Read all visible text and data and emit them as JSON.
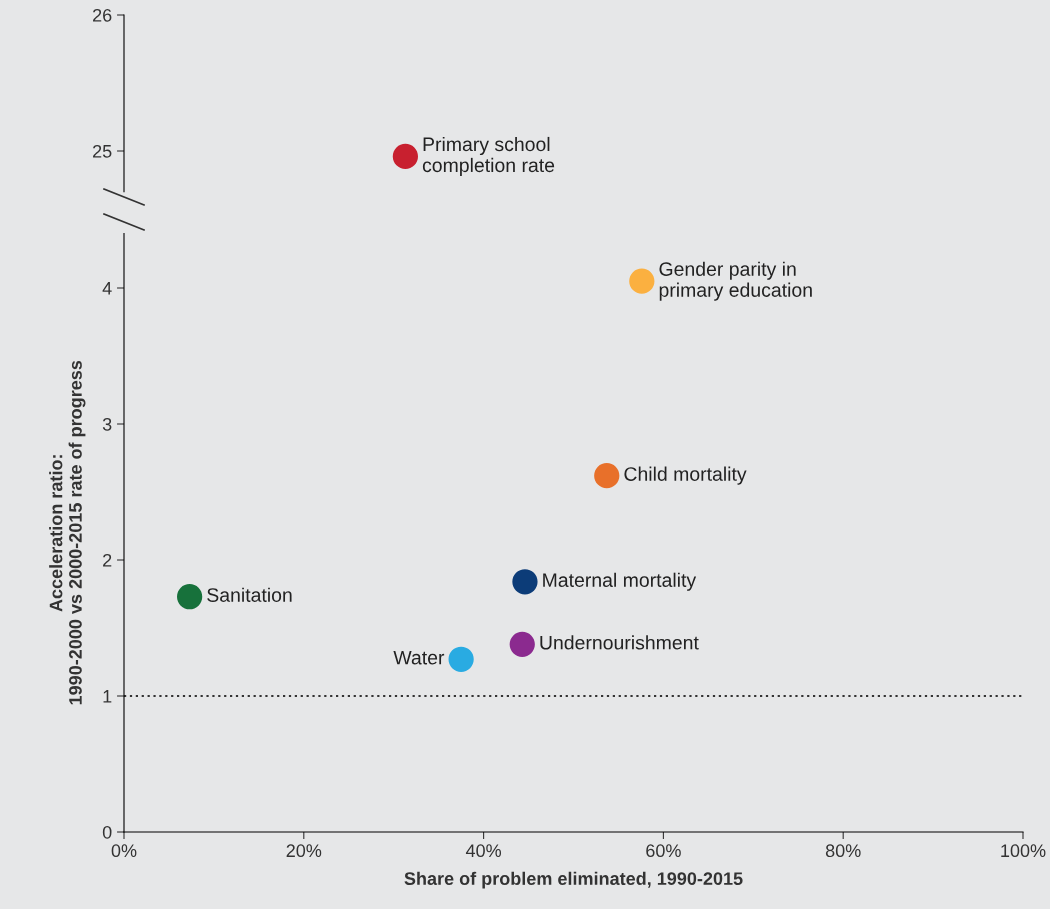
{
  "chart_data": [
    {
      "type": "scatter",
      "tick_labels": "y",
      "marker": "circle",
      "grid": false,
      "legend": false,
      "xlim": [
        0,
        100
      ],
      "ylim": [
        24.7,
        26
      ],
      "yticks": [
        25,
        26
      ],
      "series": [
        {
          "name": "Primary school\ncompletion rate",
          "color": "#c8202f",
          "x": [
            31.3
          ],
          "values": [
            24.96
          ]
        }
      ]
    },
    {
      "type": "scatter",
      "marker": "circle",
      "grid": false,
      "legend": false,
      "xlabel": "Share of problem eliminated, 1990-2015",
      "ylabel": "Acceleration ratio:\n1990-2000 vs 2000-2015 rate of progress",
      "xlim": [
        0,
        100
      ],
      "xticks": [
        {
          "value": 0,
          "label": "0%"
        },
        {
          "value": 20,
          "label": "20%"
        },
        {
          "value": 40,
          "label": "40%"
        },
        {
          "value": 60,
          "label": "60%"
        },
        {
          "value": 80,
          "label": "80%"
        },
        {
          "value": 100,
          "label": "100%"
        }
      ],
      "ylim": [
        0,
        4.4
      ],
      "yticks": [
        0,
        1,
        2,
        3,
        4
      ],
      "ref_lines": [
        {
          "axis": "y",
          "value": 1,
          "color": "#333333",
          "line_style": "dotted"
        }
      ],
      "series": [
        {
          "name": "Gender parity in\nprimary education",
          "color": "#fbb040",
          "x": [
            57.6
          ],
          "values": [
            4.05
          ]
        },
        {
          "name": "Child mortality",
          "color": "#e8702a",
          "x": [
            53.7
          ],
          "values": [
            2.62
          ]
        },
        {
          "name": "Maternal mortality",
          "color": "#0c3c78",
          "x": [
            44.6
          ],
          "values": [
            1.84
          ]
        },
        {
          "name": "Sanitation",
          "color": "#17713b",
          "x": [
            7.3
          ],
          "values": [
            1.73
          ]
        },
        {
          "name": "Undernourishment",
          "color": "#8b2a8f",
          "x": [
            44.3
          ],
          "values": [
            1.38
          ]
        },
        {
          "name": "Water",
          "color": "#29abe2",
          "x": [
            37.5
          ],
          "values": [
            1.27
          ]
        }
      ]
    }
  ]
}
